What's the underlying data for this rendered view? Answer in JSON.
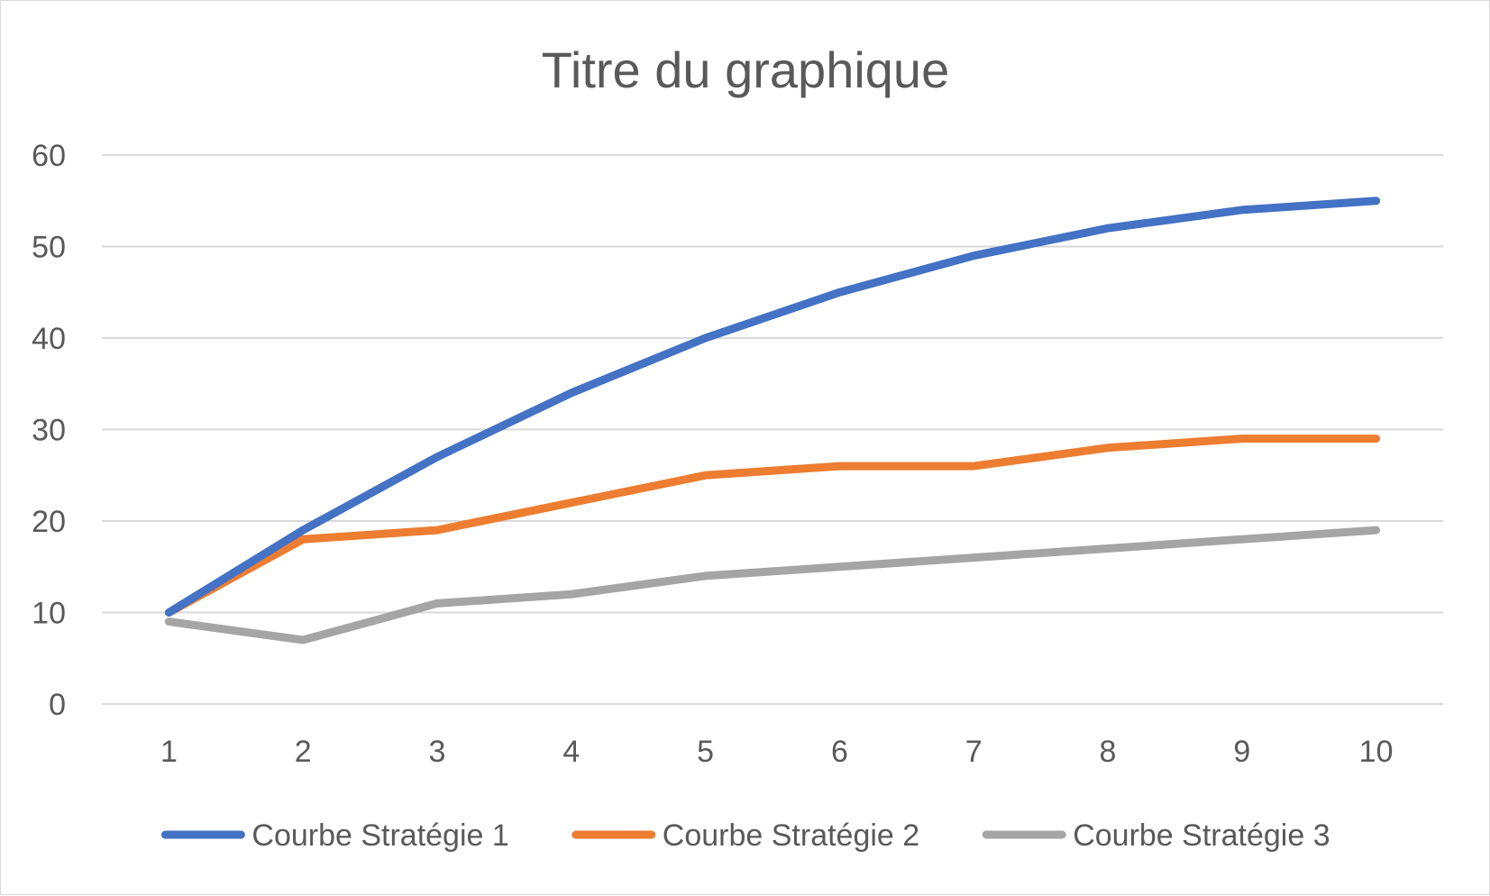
{
  "chart_data": {
    "type": "line",
    "title": "Titre du graphique",
    "xlabel": "",
    "ylabel": "",
    "categories": [
      "1",
      "2",
      "3",
      "4",
      "5",
      "6",
      "7",
      "8",
      "9",
      "10"
    ],
    "ylim": [
      0,
      60
    ],
    "yticks": [
      "0",
      "10",
      "20",
      "30",
      "40",
      "50",
      "60"
    ],
    "grid": "horizontal",
    "legend_position": "bottom",
    "series": [
      {
        "name": "Courbe Stratégie 1",
        "color": "#4472c4",
        "values": [
          10,
          19,
          27,
          34,
          40,
          45,
          49,
          52,
          54,
          55
        ]
      },
      {
        "name": "Courbe Stratégie 2",
        "color": "#ed7d31",
        "values": [
          10,
          18,
          19,
          22,
          25,
          26,
          26,
          28,
          29,
          29
        ]
      },
      {
        "name": "Courbe Stratégie 3",
        "color": "#a5a5a5",
        "values": [
          9,
          7,
          11,
          12,
          14,
          15,
          16,
          17,
          18,
          19
        ]
      }
    ]
  }
}
